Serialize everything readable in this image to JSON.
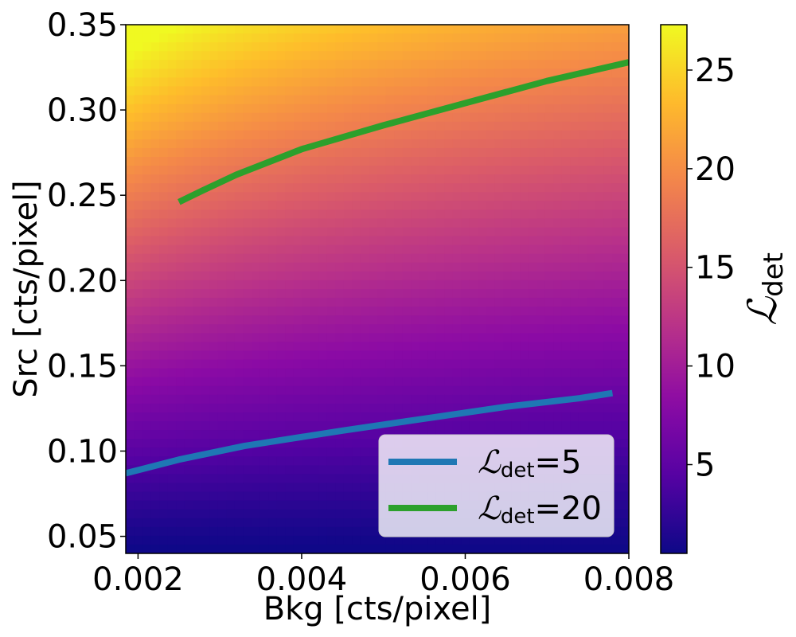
{
  "chart_data": {
    "type": "heatmap",
    "colormap": "plasma",
    "xlabel": "Bkg [cts/pixel]",
    "ylabel": "Src [cts/pixel]",
    "xlim": [
      0.00185,
      0.008
    ],
    "ylim": [
      0.04,
      0.35
    ],
    "x_ticks": [
      0.002,
      0.004,
      0.006,
      0.008
    ],
    "x_tick_labels": [
      "0.002",
      "0.004",
      "0.006",
      "0.008"
    ],
    "y_ticks": [
      0.05,
      0.1,
      0.15,
      0.2,
      0.25,
      0.3,
      0.35
    ],
    "y_tick_labels": [
      "0.05",
      "0.10",
      "0.15",
      "0.20",
      "0.25",
      "0.30",
      "0.35"
    ],
    "colorbar": {
      "label_main": "ℒ",
      "label_sub": "det",
      "range": [
        0.5,
        27.3
      ],
      "ticks": [
        5,
        10,
        15,
        20,
        25
      ],
      "tick_labels": [
        "5",
        "10",
        "15",
        "20",
        "25"
      ]
    },
    "series": [
      {
        "name_main": "ℒ",
        "name_sub": "det",
        "name_suffix": "=5",
        "color": "#1f77b4",
        "x": [
          0.00185,
          0.0025,
          0.0033,
          0.0045,
          0.0055,
          0.0065,
          0.0074,
          0.0078
        ],
        "y": [
          0.087,
          0.095,
          0.103,
          0.112,
          0.119,
          0.126,
          0.131,
          0.134
        ]
      },
      {
        "name_main": "ℒ",
        "name_sub": "det",
        "name_suffix": "=20",
        "color": "#2ca02c",
        "x": [
          0.0025,
          0.0028,
          0.0032,
          0.004,
          0.005,
          0.006,
          0.007,
          0.008
        ],
        "y": [
          0.246,
          0.253,
          0.262,
          0.277,
          0.291,
          0.304,
          0.317,
          0.328
        ]
      }
    ],
    "legend_position": "lower-right"
  }
}
